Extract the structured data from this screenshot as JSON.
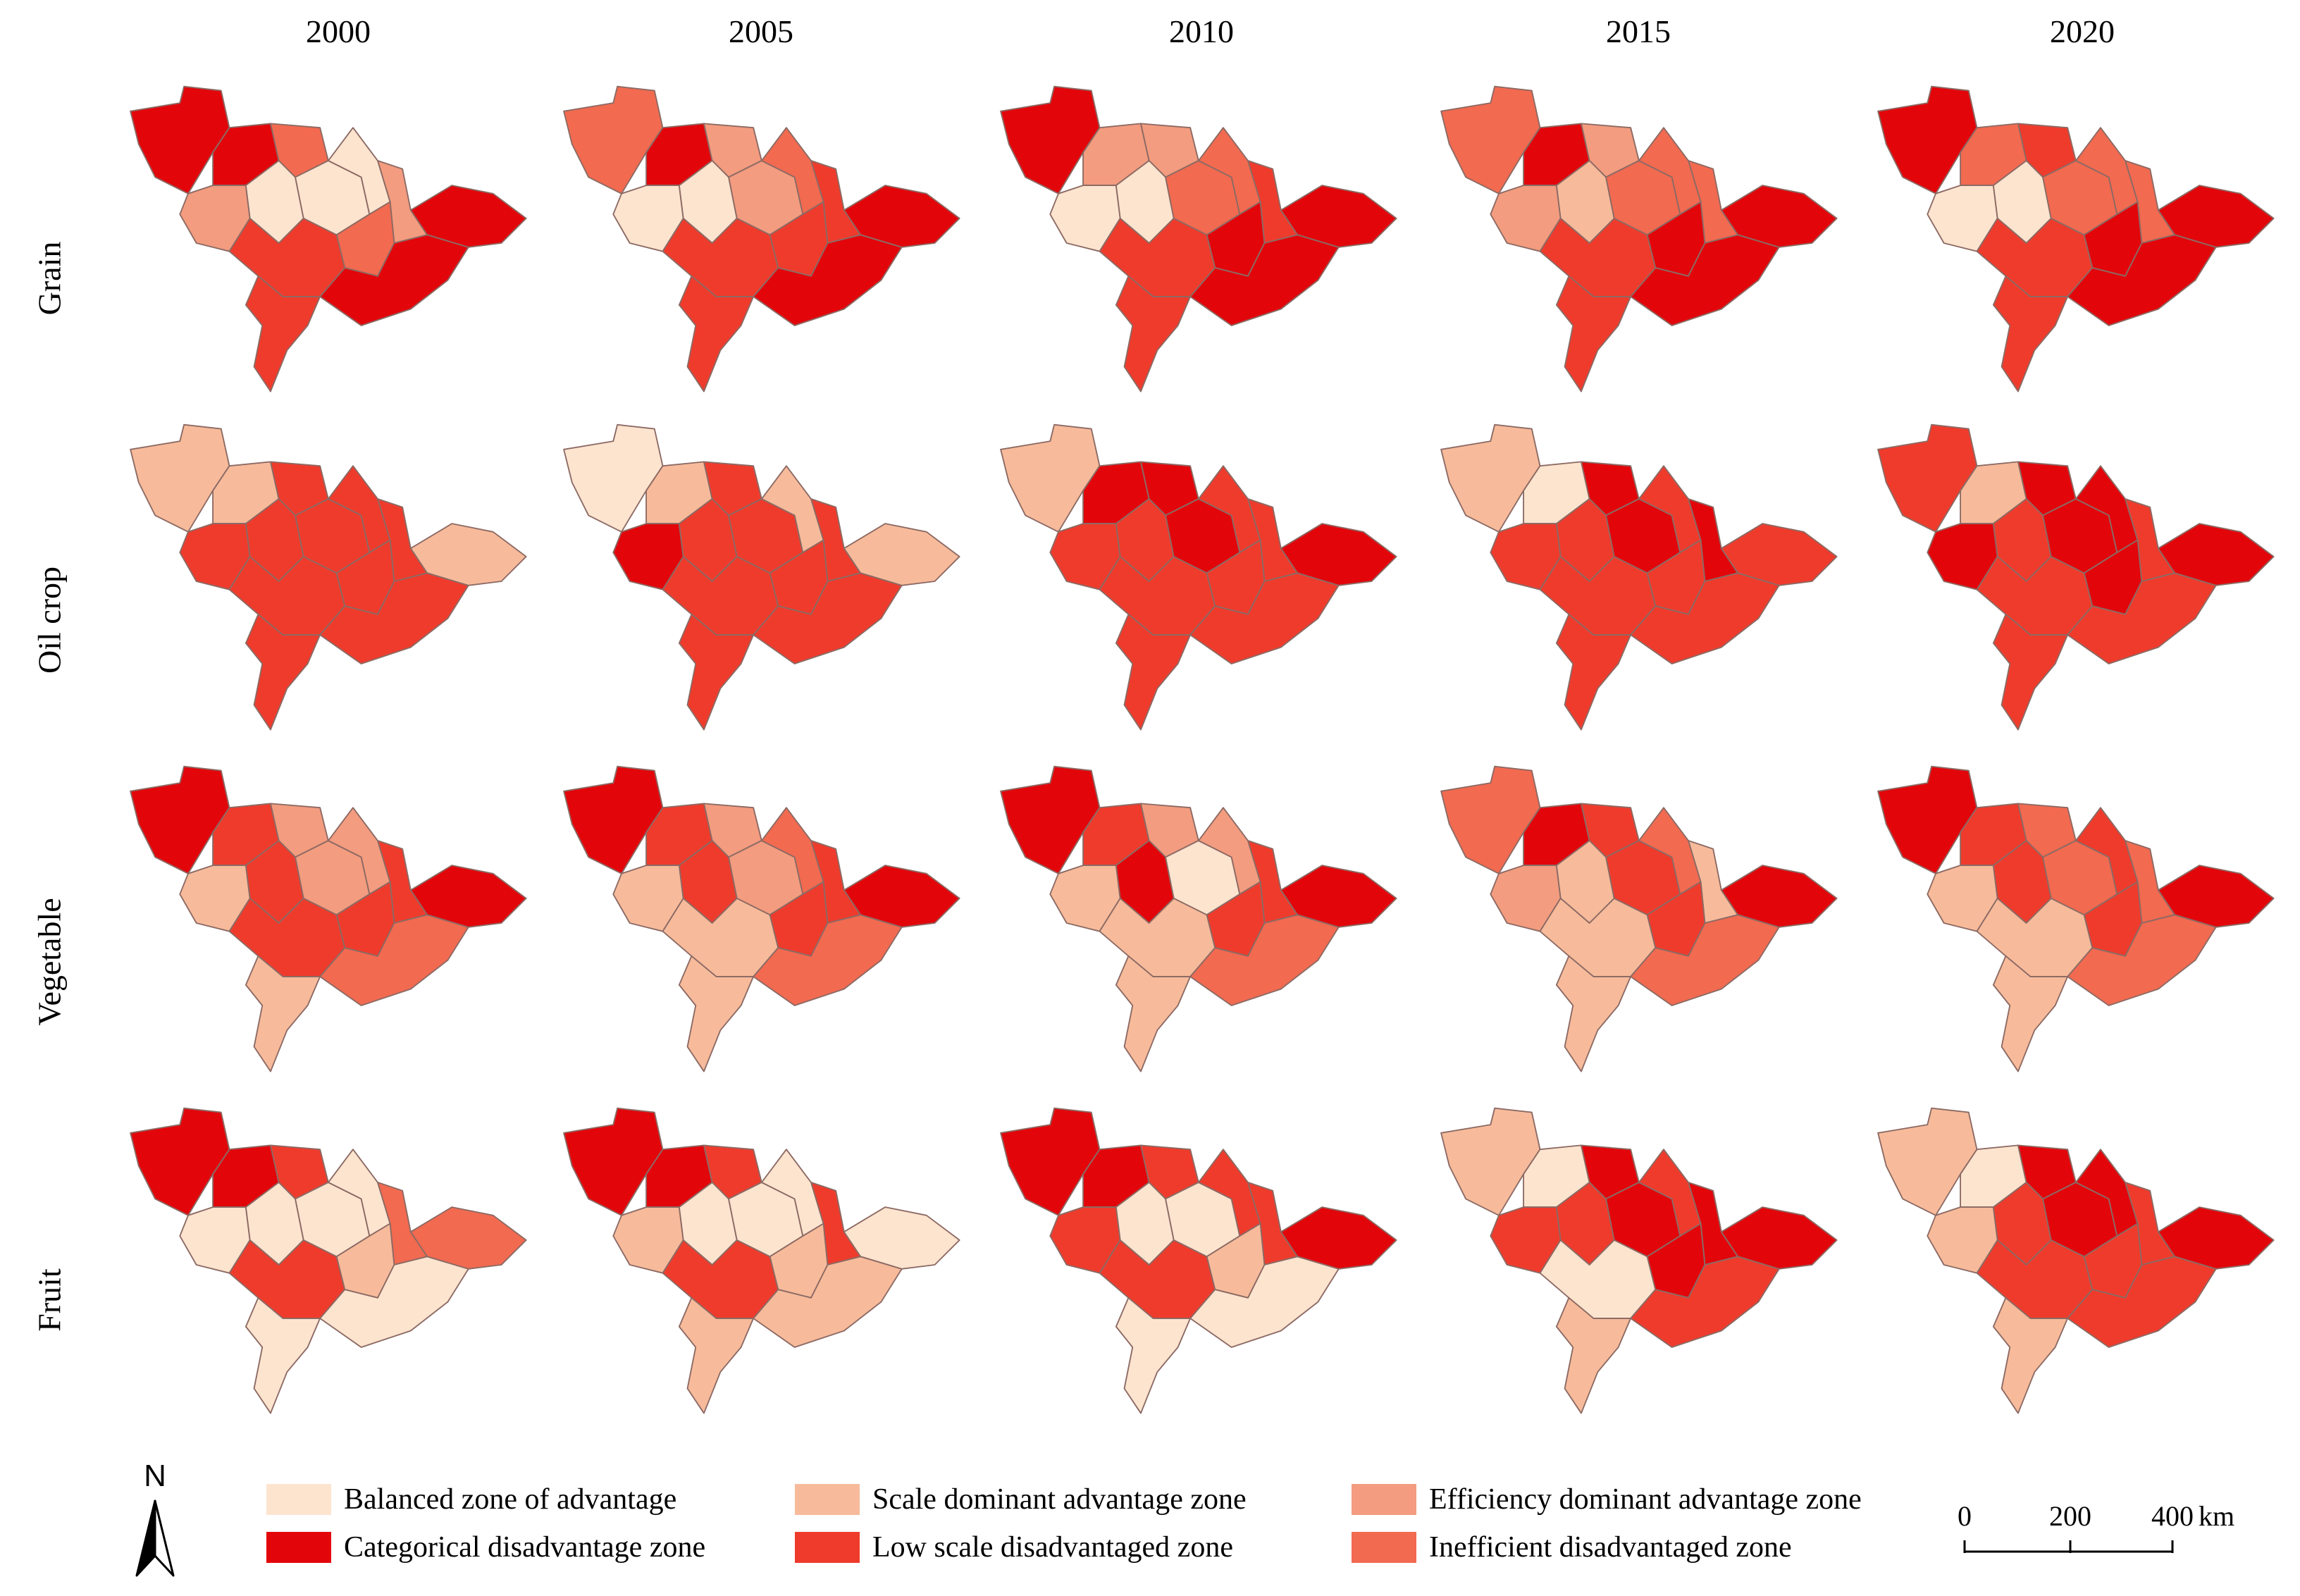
{
  "figure": {
    "years": [
      "2000",
      "2005",
      "2010",
      "2015",
      "2020"
    ],
    "crops": [
      "Grain",
      "Oil crop",
      "Vegetable",
      "Fruit"
    ]
  },
  "colors": {
    "balanced": "#fde4cf",
    "scale_dominant": "#f7bb9b",
    "efficiency_dominant": "#f39c7f",
    "categorical": "#e2060b",
    "low_scale": "#ef3b2c",
    "inefficient": "#f26a50"
  },
  "legend": [
    {
      "key": "balanced",
      "label": "Balanced zone of advantage"
    },
    {
      "key": "scale_dominant",
      "label": "Scale dominant advantage zone"
    },
    {
      "key": "efficiency_dominant",
      "label": "Efficiency dominant advantage zone"
    },
    {
      "key": "categorical",
      "label": "Categorical disadvantage zone"
    },
    {
      "key": "low_scale",
      "label": "Low scale disadvantaged zone"
    },
    {
      "key": "inefficient",
      "label": "Inefficient disadvantaged zone"
    }
  ],
  "north_arrow": {
    "label": "N",
    "icon": "north-arrow-icon"
  },
  "scale_bar": {
    "ticks": [
      "0",
      "200",
      "400"
    ],
    "unit": "km"
  },
  "map_panels": [
    {
      "crop": "Grain",
      "year": "2000",
      "zones": [
        "categorical",
        "categorical",
        "inefficient",
        "efficiency_dominant",
        "balanced",
        "balanced",
        "balanced",
        "efficiency_dominant",
        "inefficient",
        "categorical",
        "low_scale",
        "low_scale",
        "categorical"
      ]
    },
    {
      "crop": "Grain",
      "year": "2005",
      "zones": [
        "inefficient",
        "categorical",
        "efficiency_dominant",
        "balanced",
        "balanced",
        "efficiency_dominant",
        "inefficient",
        "low_scale",
        "low_scale",
        "categorical",
        "low_scale",
        "low_scale",
        "categorical"
      ]
    },
    {
      "crop": "Grain",
      "year": "2010",
      "zones": [
        "categorical",
        "efficiency_dominant",
        "efficiency_dominant",
        "balanced",
        "balanced",
        "inefficient",
        "inefficient",
        "low_scale",
        "categorical",
        "categorical",
        "low_scale",
        "low_scale",
        "categorical"
      ]
    },
    {
      "crop": "Grain",
      "year": "2015",
      "zones": [
        "inefficient",
        "categorical",
        "efficiency_dominant",
        "efficiency_dominant",
        "scale_dominant",
        "inefficient",
        "inefficient",
        "inefficient",
        "categorical",
        "categorical",
        "low_scale",
        "low_scale",
        "categorical"
      ]
    },
    {
      "crop": "Grain",
      "year": "2020",
      "zones": [
        "categorical",
        "inefficient",
        "low_scale",
        "balanced",
        "balanced",
        "inefficient",
        "inefficient",
        "inefficient",
        "categorical",
        "categorical",
        "low_scale",
        "low_scale",
        "categorical"
      ]
    },
    {
      "crop": "Oil crop",
      "year": "2000",
      "zones": [
        "scale_dominant",
        "scale_dominant",
        "low_scale",
        "low_scale",
        "low_scale",
        "low_scale",
        "low_scale",
        "low_scale",
        "low_scale",
        "scale_dominant",
        "low_scale",
        "low_scale",
        "low_scale"
      ]
    },
    {
      "crop": "Oil crop",
      "year": "2005",
      "zones": [
        "balanced",
        "scale_dominant",
        "low_scale",
        "categorical",
        "low_scale",
        "low_scale",
        "scale_dominant",
        "low_scale",
        "low_scale",
        "scale_dominant",
        "low_scale",
        "low_scale",
        "low_scale"
      ]
    },
    {
      "crop": "Oil crop",
      "year": "2010",
      "zones": [
        "scale_dominant",
        "categorical",
        "categorical",
        "low_scale",
        "low_scale",
        "categorical",
        "low_scale",
        "low_scale",
        "low_scale",
        "categorical",
        "low_scale",
        "low_scale",
        "low_scale"
      ]
    },
    {
      "crop": "Oil crop",
      "year": "2015",
      "zones": [
        "scale_dominant",
        "balanced",
        "categorical",
        "low_scale",
        "low_scale",
        "categorical",
        "low_scale",
        "categorical",
        "low_scale",
        "low_scale",
        "low_scale",
        "low_scale",
        "low_scale"
      ]
    },
    {
      "crop": "Oil crop",
      "year": "2020",
      "zones": [
        "low_scale",
        "scale_dominant",
        "categorical",
        "categorical",
        "low_scale",
        "categorical",
        "categorical",
        "low_scale",
        "categorical",
        "categorical",
        "low_scale",
        "low_scale",
        "low_scale"
      ]
    },
    {
      "crop": "Vegetable",
      "year": "2000",
      "zones": [
        "categorical",
        "low_scale",
        "efficiency_dominant",
        "scale_dominant",
        "low_scale",
        "efficiency_dominant",
        "efficiency_dominant",
        "low_scale",
        "low_scale",
        "categorical",
        "low_scale",
        "scale_dominant",
        "inefficient"
      ]
    },
    {
      "crop": "Vegetable",
      "year": "2005",
      "zones": [
        "categorical",
        "low_scale",
        "efficiency_dominant",
        "scale_dominant",
        "low_scale",
        "efficiency_dominant",
        "inefficient",
        "low_scale",
        "low_scale",
        "categorical",
        "scale_dominant",
        "scale_dominant",
        "inefficient"
      ]
    },
    {
      "crop": "Vegetable",
      "year": "2010",
      "zones": [
        "categorical",
        "low_scale",
        "efficiency_dominant",
        "scale_dominant",
        "categorical",
        "balanced",
        "efficiency_dominant",
        "low_scale",
        "low_scale",
        "categorical",
        "scale_dominant",
        "scale_dominant",
        "inefficient"
      ]
    },
    {
      "crop": "Vegetable",
      "year": "2015",
      "zones": [
        "inefficient",
        "categorical",
        "low_scale",
        "efficiency_dominant",
        "scale_dominant",
        "low_scale",
        "inefficient",
        "scale_dominant",
        "low_scale",
        "categorical",
        "scale_dominant",
        "scale_dominant",
        "inefficient"
      ]
    },
    {
      "crop": "Vegetable",
      "year": "2020",
      "zones": [
        "categorical",
        "low_scale",
        "inefficient",
        "scale_dominant",
        "low_scale",
        "inefficient",
        "low_scale",
        "inefficient",
        "low_scale",
        "categorical",
        "scale_dominant",
        "scale_dominant",
        "inefficient"
      ]
    },
    {
      "crop": "Fruit",
      "year": "2000",
      "zones": [
        "categorical",
        "categorical",
        "low_scale",
        "balanced",
        "balanced",
        "balanced",
        "balanced",
        "inefficient",
        "scale_dominant",
        "inefficient",
        "low_scale",
        "balanced",
        "balanced"
      ]
    },
    {
      "crop": "Fruit",
      "year": "2005",
      "zones": [
        "categorical",
        "categorical",
        "low_scale",
        "scale_dominant",
        "balanced",
        "balanced",
        "balanced",
        "low_scale",
        "scale_dominant",
        "balanced",
        "low_scale",
        "scale_dominant",
        "scale_dominant"
      ]
    },
    {
      "crop": "Fruit",
      "year": "2010",
      "zones": [
        "categorical",
        "categorical",
        "low_scale",
        "low_scale",
        "balanced",
        "balanced",
        "low_scale",
        "low_scale",
        "scale_dominant",
        "categorical",
        "low_scale",
        "balanced",
        "balanced"
      ]
    },
    {
      "crop": "Fruit",
      "year": "2015",
      "zones": [
        "scale_dominant",
        "balanced",
        "categorical",
        "low_scale",
        "low_scale",
        "categorical",
        "low_scale",
        "categorical",
        "categorical",
        "categorical",
        "balanced",
        "scale_dominant",
        "low_scale"
      ]
    },
    {
      "crop": "Fruit",
      "year": "2020",
      "zones": [
        "scale_dominant",
        "balanced",
        "categorical",
        "scale_dominant",
        "low_scale",
        "categorical",
        "categorical",
        "low_scale",
        "low_scale",
        "categorical",
        "low_scale",
        "scale_dominant",
        "low_scale"
      ]
    }
  ]
}
